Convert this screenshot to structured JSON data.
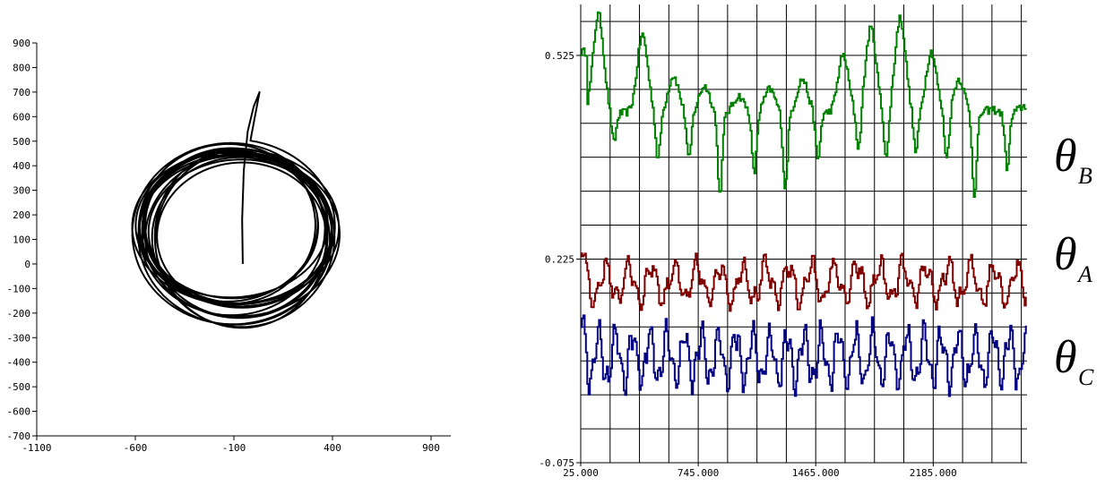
{
  "chart_data": [
    {
      "type": "line",
      "title": "",
      "xlabel": "",
      "ylabel": "",
      "xlim": [
        -1100,
        1000
      ],
      "ylim": [
        -700,
        900
      ],
      "grid": false,
      "x_ticks": [
        "-1100",
        "-600",
        "-100",
        "400",
        "900"
      ],
      "y_ticks": [
        "900",
        "800",
        "700",
        "600",
        "500",
        "400",
        "300",
        "200",
        "100",
        "0",
        "-100",
        "-200",
        "-300",
        "-400",
        "-500",
        "-600",
        "-700"
      ],
      "trajectory": {
        "start": [
          -55,
          0
        ],
        "path_to_orbit": [
          [
            -55,
            0
          ],
          [
            -58,
            180
          ],
          [
            -50,
            380
          ],
          [
            -30,
            540
          ],
          [
            0,
            640
          ],
          [
            30,
            700
          ]
        ],
        "orbit_center": [
          -90,
          130
        ],
        "orbit_radius_x": [
          860,
          1010
        ],
        "orbit_radius_y": [
          590,
          730
        ],
        "color": "#000000"
      }
    },
    {
      "type": "line",
      "title": "",
      "xlabel": "",
      "ylabel": "",
      "xlim": [
        25,
        2760
      ],
      "ylim": [
        -0.075,
        0.6
      ],
      "grid": true,
      "x_ticks": [
        "25.000",
        "745.000",
        "1465.000",
        "2185.000"
      ],
      "y_ticks": [
        "0.525",
        "0.225",
        "-0.075"
      ],
      "legend_placement": "right",
      "series": [
        {
          "label_symbol": "θ",
          "label_sub": "B",
          "color": "#008000",
          "baseline": 0.44,
          "peak_x": [
            130,
            400,
            590,
            780,
            990,
            1180,
            1380,
            1630,
            1800,
            1980,
            2170,
            2340,
            2540,
            2740
          ],
          "peak_y": [
            0.585,
            0.555,
            0.495,
            0.48,
            0.465,
            0.475,
            0.49,
            0.525,
            0.565,
            0.58,
            0.53,
            0.49,
            0.445,
            0.45
          ],
          "trough_y": [
            0.395,
            0.37,
            0.37,
            0.32,
            0.35,
            0.33,
            0.37,
            0.38,
            0.37,
            0.38,
            0.37,
            0.32,
            0.36,
            0.33
          ],
          "noise": 0.006
        },
        {
          "label_symbol": "θ",
          "label_sub": "A",
          "color": "#800000",
          "baseline": 0.19,
          "amplitude": 0.025,
          "period": 140,
          "start_value": 0.235,
          "noise": 0.008
        },
        {
          "label_symbol": "θ",
          "label_sub": "C",
          "color": "#000080",
          "baseline": 0.08,
          "amplitude": 0.035,
          "period": 105,
          "start_value": 0.13,
          "noise": 0.008
        }
      ]
    }
  ]
}
